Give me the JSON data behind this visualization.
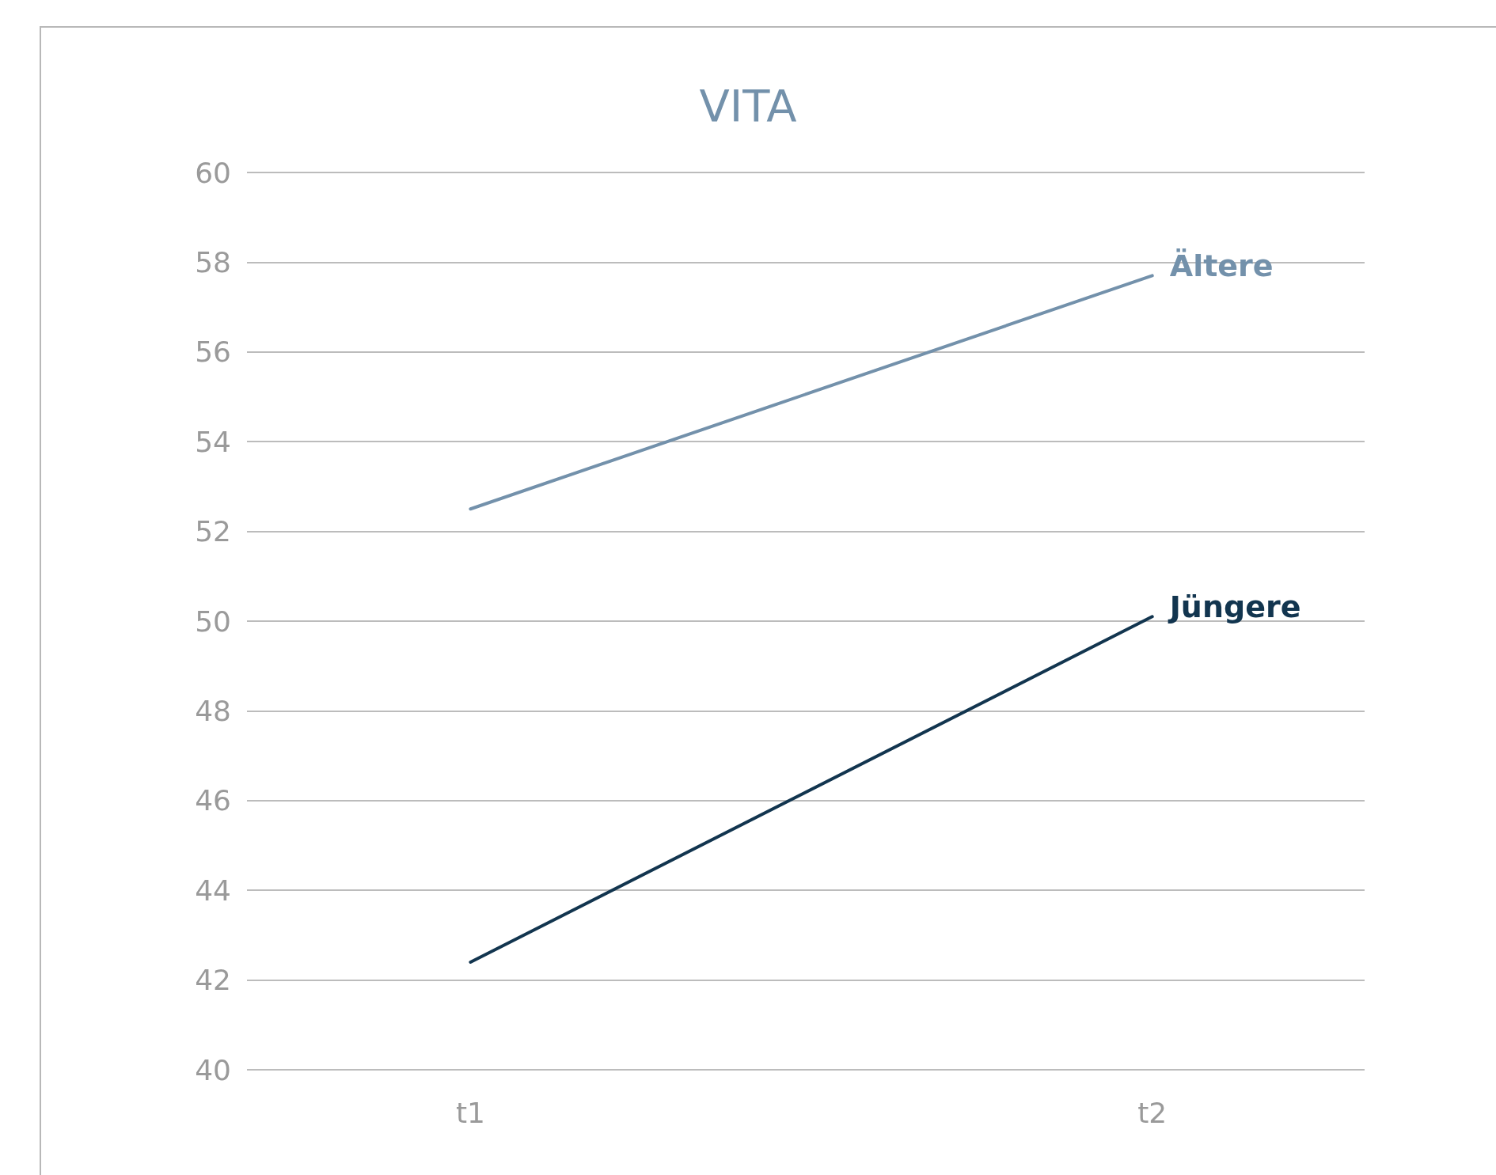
{
  "chart_data": {
    "type": "line",
    "title": "VITA",
    "categories": [
      "t1",
      "t2"
    ],
    "series": [
      {
        "name": "Ältere",
        "color": "#7391ab",
        "values": [
          52.5,
          57.7
        ]
      },
      {
        "name": "Jüngere",
        "color": "#12354f",
        "values": [
          42.4,
          50.1
        ]
      }
    ],
    "ylim": [
      40,
      60
    ],
    "yticks": [
      40,
      42,
      44,
      46,
      48,
      50,
      52,
      54,
      56,
      58,
      60
    ],
    "grid": "y",
    "legend": false,
    "marker": "none",
    "line_style": "solid"
  }
}
